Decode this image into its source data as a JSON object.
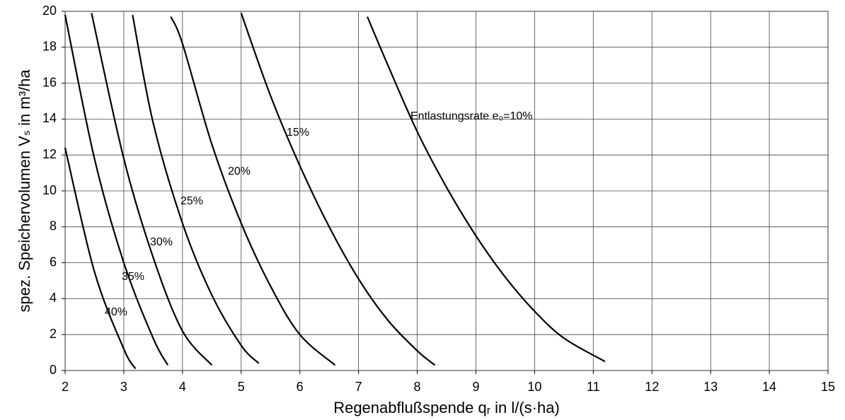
{
  "chart_data": {
    "type": "line",
    "xlabel": "Regenabflußspende qᵣ in l/(s·ha)",
    "ylabel": "spez. Speichervolumen Vₛ in m³/ha",
    "xlim": [
      2,
      15
    ],
    "xticks": [
      2,
      3,
      4,
      5,
      6,
      7,
      8,
      9,
      10,
      11,
      12,
      13,
      14,
      15
    ],
    "ylim": [
      0,
      20
    ],
    "yticks": [
      0,
      2,
      4,
      6,
      8,
      10,
      12,
      14,
      16,
      18,
      20
    ],
    "grid": true,
    "series": [
      {
        "name": "Entlastungsrate e₀=10%",
        "color": "#000000",
        "x": [
          7.15,
          7.5,
          8,
          8.5,
          9,
          9.5,
          10,
          10.5,
          11.2
        ],
        "values": [
          19.7,
          17,
          13.3,
          10.2,
          7.5,
          5.2,
          3.3,
          1.8,
          0.5
        ]
      },
      {
        "name": "15%",
        "color": "#000000",
        "x": [
          5.0,
          5.5,
          6,
          6.5,
          7,
          7.5,
          8,
          8.3
        ],
        "values": [
          19.9,
          15.3,
          11.4,
          8.0,
          5.1,
          2.8,
          1.1,
          0.3
        ]
      },
      {
        "name": "20%",
        "color": "#000000",
        "x": [
          3.8,
          4,
          4.5,
          5,
          5.5,
          6,
          6.6
        ],
        "values": [
          19.7,
          18.2,
          12.6,
          8.2,
          4.7,
          2.0,
          0.3
        ]
      },
      {
        "name": "25%",
        "color": "#000000",
        "x": [
          3.15,
          3.5,
          4,
          4.5,
          5,
          5.3
        ],
        "values": [
          19.8,
          13.8,
          8.2,
          4.2,
          1.4,
          0.4
        ]
      },
      {
        "name": "30%",
        "color": "#000000",
        "x": [
          2.45,
          3,
          3.5,
          4,
          4.5
        ],
        "values": [
          19.9,
          11.8,
          6.3,
          2.2,
          0.3
        ]
      },
      {
        "name": "35%",
        "color": "#000000",
        "x": [
          2,
          2.5,
          3,
          3.5,
          3.75
        ],
        "values": [
          19.8,
          11.8,
          6.0,
          1.8,
          0.3
        ]
      },
      {
        "name": "40%",
        "color": "#000000",
        "x": [
          2,
          2.5,
          3,
          3.2
        ],
        "values": [
          12.4,
          5.5,
          1.2,
          0.1
        ]
      }
    ]
  }
}
